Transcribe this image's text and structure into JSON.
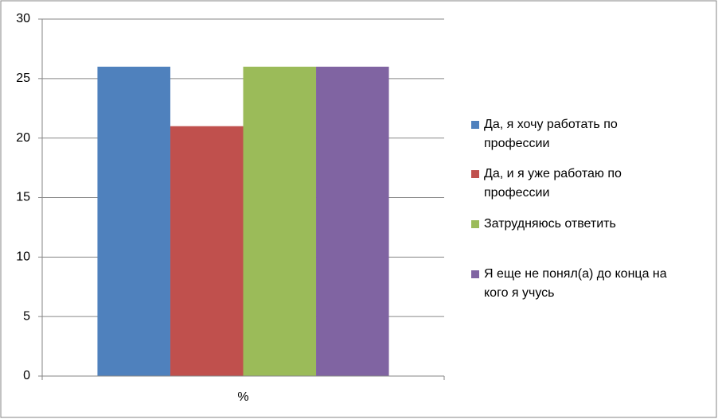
{
  "chart_data": {
    "type": "bar",
    "categories": [
      "%"
    ],
    "series": [
      {
        "name": "Да, я хочу работать по профессии",
        "color": "#4f81bd",
        "values": [
          26
        ]
      },
      {
        "name": "Да, и я уже работаю по профессии",
        "color": "#c0504d",
        "values": [
          21
        ]
      },
      {
        "name": "Затрудняюсь ответить",
        "color": "#9bbb59",
        "values": [
          26
        ]
      },
      {
        "name": "Я еще не понял(а) до конца на кого я учусь",
        "color": "#8064a2",
        "values": [
          26
        ]
      }
    ],
    "ylim": [
      0,
      30
    ],
    "yticks": [
      0,
      5,
      10,
      15,
      20,
      25,
      30
    ],
    "grid": true,
    "legend": "right"
  }
}
